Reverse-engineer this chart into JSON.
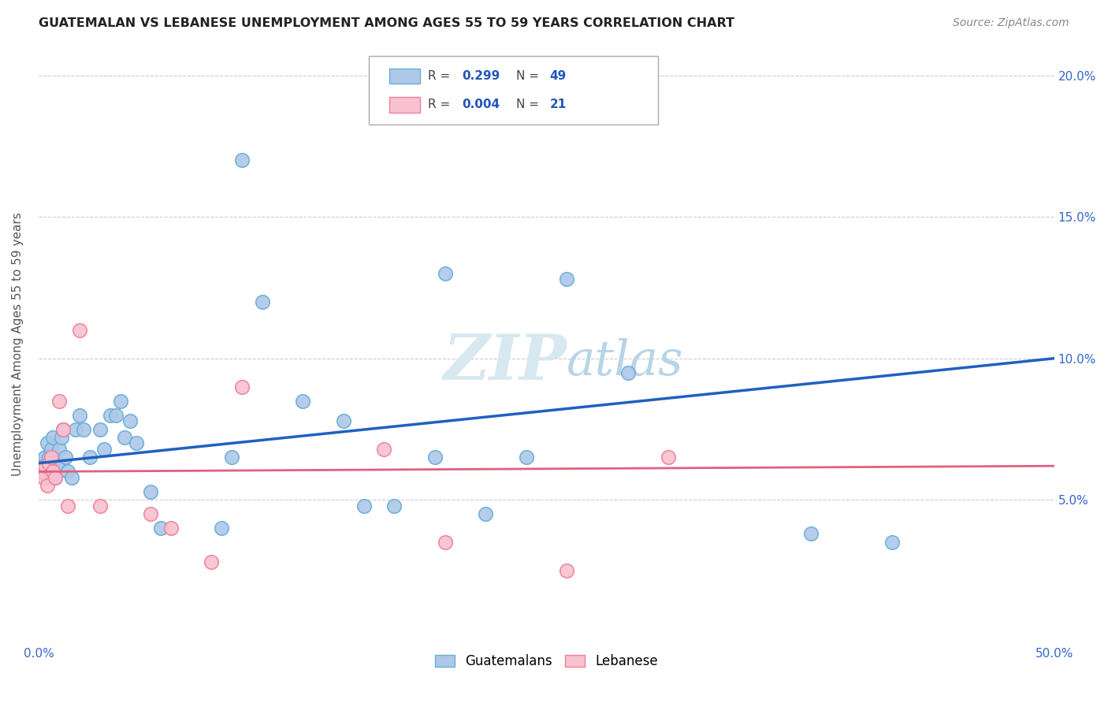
{
  "title": "GUATEMALAN VS LEBANESE UNEMPLOYMENT AMONG AGES 55 TO 59 YEARS CORRELATION CHART",
  "source": "Source: ZipAtlas.com",
  "ylabel": "Unemployment Among Ages 55 to 59 years",
  "xlim": [
    0.0,
    0.5
  ],
  "ylim": [
    0.0,
    0.21
  ],
  "xticks": [
    0.0,
    0.1,
    0.2,
    0.3,
    0.4,
    0.5
  ],
  "xtick_labels": [
    "0.0%",
    "",
    "",
    "",
    "",
    "50.0%"
  ],
  "yticks": [
    0.0,
    0.05,
    0.1,
    0.15,
    0.2
  ],
  "ytick_labels_right": [
    "",
    "5.0%",
    "10.0%",
    "15.0%",
    "20.0%"
  ],
  "legend_labels": [
    "Guatemalans",
    "Lebanese"
  ],
  "guatemalan_R": "0.299",
  "guatemalan_N": "49",
  "lebanese_R": "0.004",
  "lebanese_N": "21",
  "guatemalan_color_fill": "#adc8e8",
  "guatemalan_color_edge": "#6aaed6",
  "lebanese_color_fill": "#f9c0d0",
  "lebanese_color_edge": "#f08098",
  "guatemalan_line_color": "#2060c0",
  "lebanese_line_color": "#e06080",
  "watermark_color": "#d8e8f0",
  "guatemalan_x": [
    0.001,
    0.002,
    0.003,
    0.003,
    0.004,
    0.004,
    0.005,
    0.005,
    0.006,
    0.007,
    0.007,
    0.008,
    0.009,
    0.01,
    0.011,
    0.012,
    0.013,
    0.014,
    0.016,
    0.018,
    0.02,
    0.022,
    0.025,
    0.03,
    0.032,
    0.035,
    0.038,
    0.04,
    0.042,
    0.045,
    0.048,
    0.055,
    0.06,
    0.09,
    0.095,
    0.1,
    0.11,
    0.13,
    0.15,
    0.16,
    0.175,
    0.195,
    0.2,
    0.22,
    0.24,
    0.26,
    0.29,
    0.38,
    0.42
  ],
  "guatemalan_y": [
    0.063,
    0.06,
    0.058,
    0.065,
    0.062,
    0.07,
    0.06,
    0.065,
    0.068,
    0.063,
    0.072,
    0.058,
    0.063,
    0.068,
    0.072,
    0.075,
    0.065,
    0.06,
    0.058,
    0.075,
    0.08,
    0.075,
    0.065,
    0.075,
    0.068,
    0.08,
    0.08,
    0.085,
    0.072,
    0.078,
    0.07,
    0.053,
    0.04,
    0.04,
    0.065,
    0.17,
    0.12,
    0.085,
    0.078,
    0.048,
    0.048,
    0.065,
    0.13,
    0.045,
    0.065,
    0.128,
    0.095,
    0.038,
    0.035
  ],
  "lebanese_x": [
    0.001,
    0.002,
    0.003,
    0.004,
    0.005,
    0.006,
    0.007,
    0.008,
    0.01,
    0.012,
    0.014,
    0.02,
    0.03,
    0.055,
    0.065,
    0.085,
    0.1,
    0.17,
    0.2,
    0.26,
    0.31
  ],
  "lebanese_y": [
    0.06,
    0.058,
    0.062,
    0.055,
    0.063,
    0.065,
    0.06,
    0.058,
    0.085,
    0.075,
    0.048,
    0.11,
    0.048,
    0.045,
    0.04,
    0.028,
    0.09,
    0.068,
    0.035,
    0.025,
    0.065
  ],
  "blue_line_x0": 0.0,
  "blue_line_y0": 0.063,
  "blue_line_x1": 0.5,
  "blue_line_y1": 0.1,
  "pink_line_x0": 0.0,
  "pink_line_y0": 0.06,
  "pink_line_x1": 0.5,
  "pink_line_y1": 0.062
}
